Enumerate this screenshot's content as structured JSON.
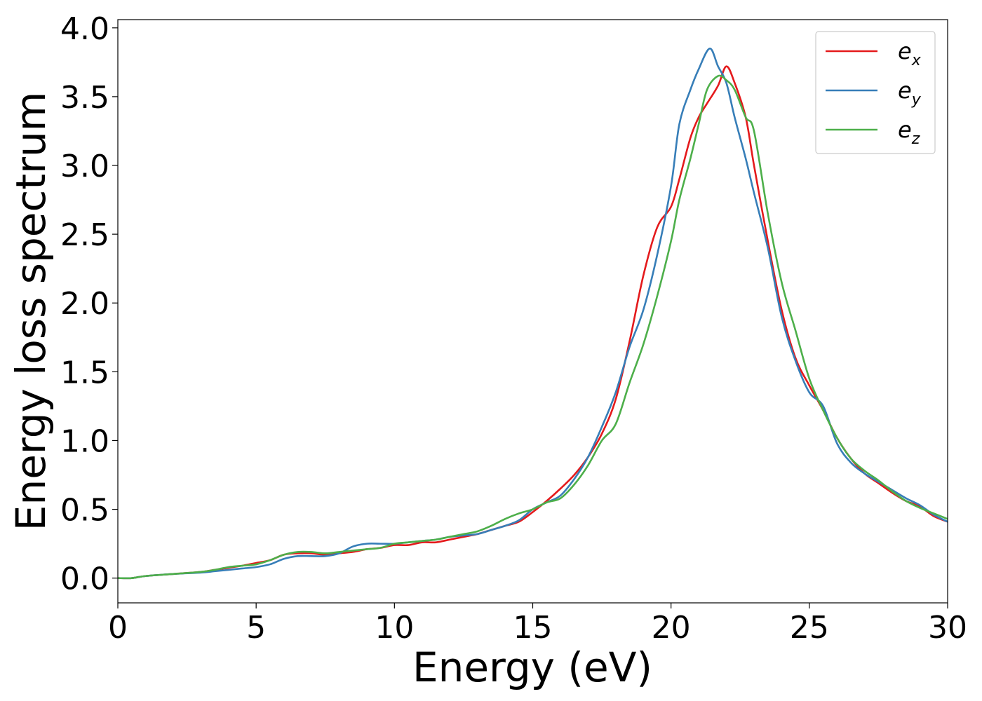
{
  "chart_data": {
    "type": "line",
    "title": "",
    "xlabel": "Energy (eV)",
    "ylabel": "Energy loss spectrum",
    "xlim": [
      0,
      30
    ],
    "ylim": [
      -0.18,
      4.06
    ],
    "xticks": [
      0,
      5,
      10,
      15,
      20,
      25,
      30
    ],
    "xtick_labels": [
      "0",
      "5",
      "10",
      "15",
      "20",
      "25",
      "30"
    ],
    "yticks": [
      0.0,
      0.5,
      1.0,
      1.5,
      2.0,
      2.5,
      3.0,
      3.5,
      4.0
    ],
    "ytick_labels": [
      "0.0",
      "0.5",
      "1.0",
      "1.5",
      "2.0",
      "2.5",
      "3.0",
      "3.5",
      "4.0"
    ],
    "grid": false,
    "legend_position": "top-right",
    "series": [
      {
        "name": "e_x",
        "label_base": "e",
        "label_sub": "x",
        "color": "#e41a1c",
        "x": [
          0,
          0.5,
          1,
          2,
          3,
          3.5,
          4,
          4.5,
          5,
          5.5,
          6,
          6.5,
          7,
          7.5,
          8,
          8.5,
          9,
          9.5,
          10,
          10.5,
          11,
          11.5,
          12,
          12.5,
          13,
          13.5,
          14,
          14.5,
          15,
          15.5,
          16,
          16.5,
          17,
          17.5,
          18,
          18.5,
          19,
          19.5,
          20,
          20.3,
          20.7,
          21,
          21.3,
          21.7,
          22,
          22.3,
          22.7,
          23,
          23.5,
          24,
          24.5,
          25,
          25.5,
          26,
          26.5,
          27,
          27.5,
          28,
          28.5,
          29,
          29.5,
          30
        ],
        "y": [
          0.0,
          0.0,
          0.015,
          0.03,
          0.045,
          0.06,
          0.075,
          0.09,
          0.11,
          0.13,
          0.17,
          0.18,
          0.18,
          0.17,
          0.18,
          0.19,
          0.21,
          0.22,
          0.24,
          0.24,
          0.26,
          0.26,
          0.28,
          0.3,
          0.32,
          0.35,
          0.38,
          0.41,
          0.48,
          0.56,
          0.65,
          0.75,
          0.88,
          1.05,
          1.3,
          1.72,
          2.2,
          2.55,
          2.7,
          2.9,
          3.2,
          3.35,
          3.45,
          3.58,
          3.72,
          3.6,
          3.35,
          3.0,
          2.45,
          1.95,
          1.6,
          1.4,
          1.22,
          1.02,
          0.87,
          0.76,
          0.69,
          0.62,
          0.56,
          0.52,
          0.45,
          0.41
        ]
      },
      {
        "name": "e_y",
        "label_base": "e",
        "label_sub": "y",
        "color": "#377eb8",
        "x": [
          0,
          0.5,
          1,
          2,
          3,
          3.5,
          4,
          4.5,
          5,
          5.5,
          6,
          6.5,
          7,
          7.5,
          8,
          8.5,
          9,
          9.5,
          10,
          10.5,
          11,
          11.5,
          12,
          12.5,
          13,
          13.5,
          14,
          14.5,
          15,
          15.5,
          16,
          16.5,
          17,
          17.5,
          18,
          18.5,
          19,
          19.5,
          20,
          20.3,
          20.7,
          21,
          21.4,
          21.7,
          22,
          22.3,
          22.7,
          23,
          23.5,
          24,
          24.5,
          25,
          25.5,
          26,
          26.5,
          27,
          27.5,
          28,
          28.5,
          29,
          29.5,
          30
        ],
        "y": [
          0.0,
          0.0,
          0.015,
          0.03,
          0.04,
          0.05,
          0.06,
          0.07,
          0.08,
          0.1,
          0.14,
          0.16,
          0.16,
          0.16,
          0.18,
          0.23,
          0.25,
          0.25,
          0.25,
          0.26,
          0.27,
          0.28,
          0.3,
          0.31,
          0.32,
          0.35,
          0.38,
          0.42,
          0.5,
          0.55,
          0.6,
          0.72,
          0.88,
          1.1,
          1.35,
          1.68,
          1.95,
          2.35,
          2.85,
          3.3,
          3.55,
          3.7,
          3.85,
          3.72,
          3.6,
          3.35,
          3.05,
          2.8,
          2.4,
          1.9,
          1.58,
          1.35,
          1.25,
          0.98,
          0.84,
          0.76,
          0.7,
          0.64,
          0.58,
          0.53,
          0.46,
          0.41
        ]
      },
      {
        "name": "e_z",
        "label_base": "e",
        "label_sub": "z",
        "color": "#4daf4a",
        "x": [
          0,
          0.5,
          1,
          2,
          3,
          3.5,
          4,
          4.5,
          5,
          5.5,
          6,
          6.5,
          7,
          7.5,
          8,
          8.5,
          9,
          9.5,
          10,
          10.5,
          11,
          11.5,
          12,
          12.5,
          13,
          13.5,
          14,
          14.5,
          15,
          15.5,
          16,
          16.5,
          17,
          17.5,
          18,
          18.5,
          19,
          19.5,
          20,
          20.3,
          20.7,
          21,
          21.3,
          21.7,
          22,
          22.3,
          22.7,
          23,
          23.5,
          24,
          24.5,
          25,
          25.5,
          26,
          26.5,
          27,
          27.5,
          28,
          28.5,
          29,
          29.5,
          30
        ],
        "y": [
          0.0,
          0.0,
          0.015,
          0.03,
          0.045,
          0.06,
          0.08,
          0.09,
          0.1,
          0.13,
          0.17,
          0.19,
          0.19,
          0.18,
          0.19,
          0.2,
          0.21,
          0.22,
          0.25,
          0.26,
          0.27,
          0.28,
          0.3,
          0.32,
          0.34,
          0.38,
          0.43,
          0.47,
          0.5,
          0.55,
          0.58,
          0.68,
          0.82,
          1.0,
          1.12,
          1.42,
          1.7,
          2.05,
          2.45,
          2.75,
          3.05,
          3.3,
          3.55,
          3.65,
          3.62,
          3.55,
          3.35,
          3.25,
          2.65,
          2.15,
          1.8,
          1.45,
          1.22,
          1.02,
          0.87,
          0.78,
          0.71,
          0.63,
          0.56,
          0.51,
          0.47,
          0.43
        ]
      }
    ]
  }
}
